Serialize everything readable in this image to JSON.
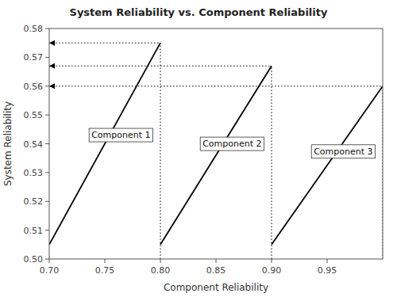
{
  "chart_data": {
    "type": "line",
    "title": "System Reliability vs. Component Reliability",
    "xlabel": "Component Reliability",
    "ylabel": "System Reliability",
    "xlim": [
      0.7,
      1.0
    ],
    "ylim": [
      0.5,
      0.58
    ],
    "xticks": [
      {
        "value": 0.7,
        "label": "0.70"
      },
      {
        "value": 0.75,
        "label": "0.75"
      },
      {
        "value": 0.8,
        "label": "0.80"
      },
      {
        "value": 0.85,
        "label": "0.85"
      },
      {
        "value": 0.9,
        "label": "0.90"
      },
      {
        "value": 0.95,
        "label": "0.95"
      }
    ],
    "yticks": [
      {
        "value": 0.5,
        "label": "0.50"
      },
      0.51,
      0.52,
      0.53,
      0.54,
      0.55,
      0.56,
      0.57,
      0.58
    ],
    "grid": false,
    "series": [
      {
        "name": "Component 1",
        "color": "#000000",
        "x": [
          0.7,
          0.8
        ],
        "values": [
          0.505,
          0.575
        ]
      },
      {
        "name": "Component 2",
        "color": "#000000",
        "x": [
          0.8,
          0.9
        ],
        "values": [
          0.505,
          0.567
        ]
      },
      {
        "name": "Component 3",
        "color": "#000000",
        "x": [
          0.9,
          1.0
        ],
        "values": [
          0.505,
          0.56
        ]
      }
    ],
    "reference": {
      "x": [
        0.8,
        0.9,
        1.0
      ],
      "values": [
        0.575,
        0.567,
        0.56
      ],
      "color": "#000000",
      "line_style": "dotted"
    }
  }
}
